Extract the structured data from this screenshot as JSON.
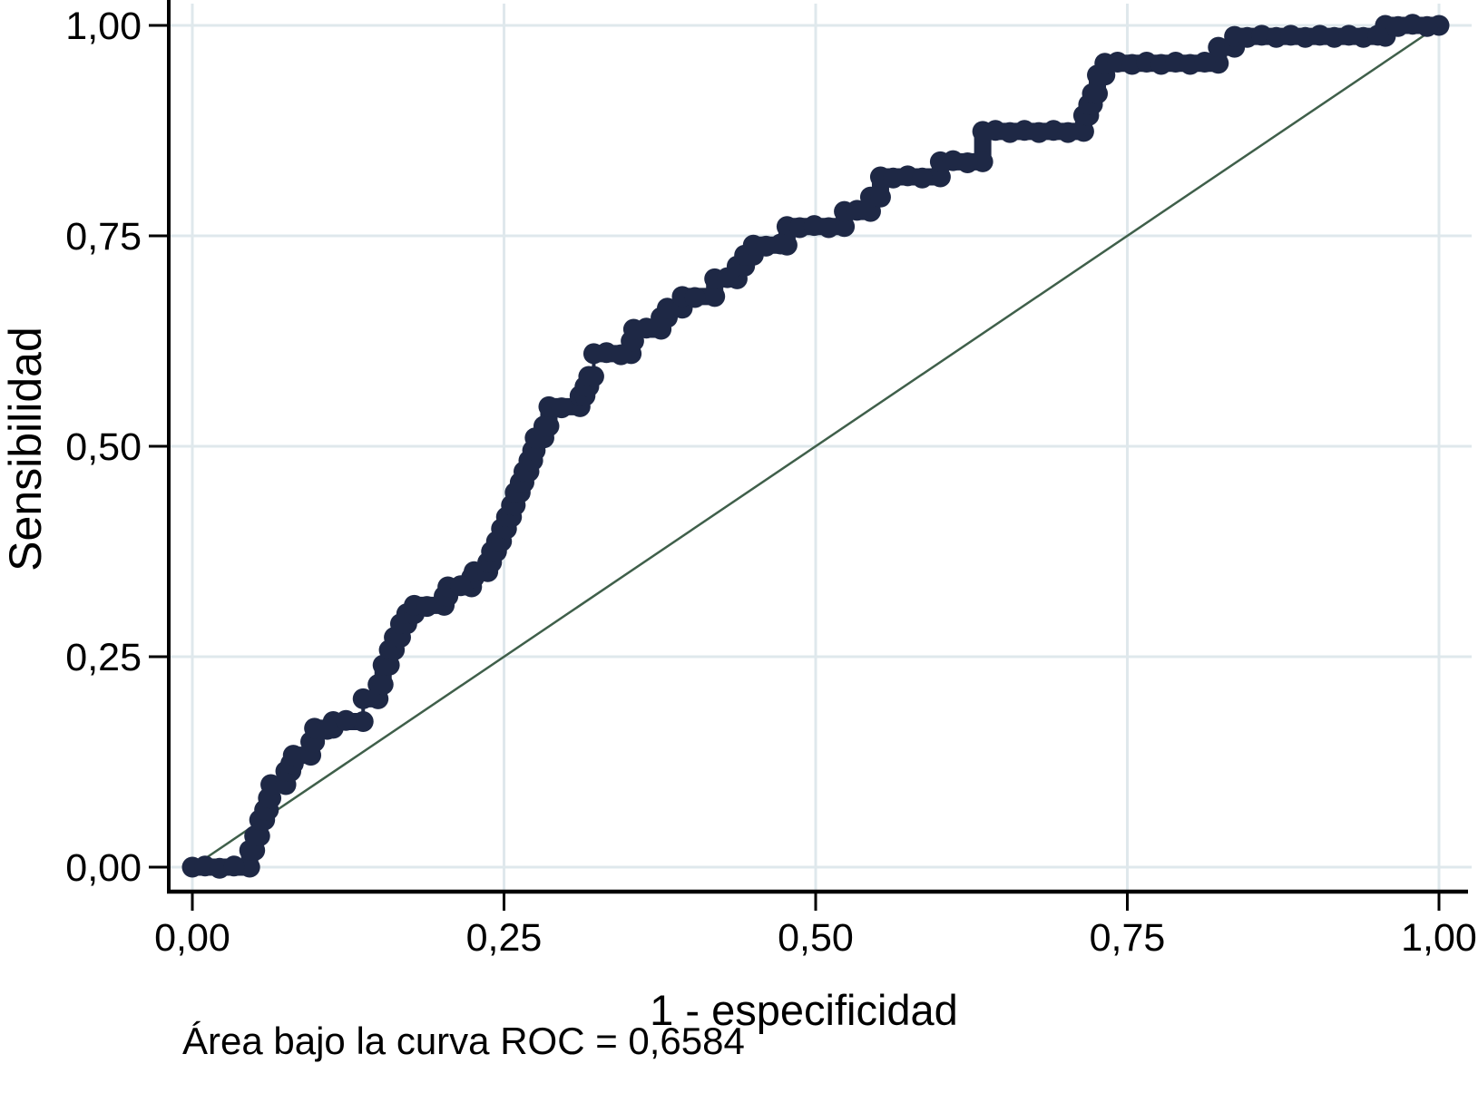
{
  "axes": {
    "y_label": "Sensibilidad",
    "x_label": "1 - especificidad"
  },
  "footer": {
    "auc_text": "Área bajo la curva ROC = 0,6584"
  },
  "colors": {
    "curve": "#1e2845",
    "reference_line": "#3f5f4a",
    "grid": "#dfe8ec",
    "axis": "#000000",
    "background": "#ffffff",
    "text": "#000000"
  },
  "chart_data": {
    "type": "line",
    "subtype": "roc-step-curve",
    "title": "",
    "xlabel": "1 - especificidad",
    "ylabel": "Sensibilidad",
    "xlim": [
      0,
      1
    ],
    "ylim": [
      0,
      1
    ],
    "grid": true,
    "legend_position": "none",
    "auc": 0.6584,
    "x_ticks": [
      {
        "value": 0.0,
        "label": "0,00"
      },
      {
        "value": 0.25,
        "label": "0,25"
      },
      {
        "value": 0.5,
        "label": "0,50"
      },
      {
        "value": 0.75,
        "label": "0,75"
      },
      {
        "value": 1.0,
        "label": "1,00"
      }
    ],
    "y_ticks": [
      {
        "value": 0.0,
        "label": "0,00"
      },
      {
        "value": 0.25,
        "label": "0,25"
      },
      {
        "value": 0.5,
        "label": "0,50"
      },
      {
        "value": 0.75,
        "label": "0,75"
      },
      {
        "value": 1.0,
        "label": "1,00"
      }
    ],
    "thin_vertical_steps_x": [
      0.137,
      0.322
    ],
    "series": [
      {
        "name": "Curva ROC",
        "style": "thick-step-with-markers",
        "color": "#1e2845",
        "points": [
          [
            0.0,
            0.0
          ],
          [
            0.046,
            0.0
          ],
          [
            0.046,
            0.02
          ],
          [
            0.05,
            0.02
          ],
          [
            0.05,
            0.037
          ],
          [
            0.054,
            0.037
          ],
          [
            0.054,
            0.056
          ],
          [
            0.058,
            0.056
          ],
          [
            0.058,
            0.068
          ],
          [
            0.061,
            0.068
          ],
          [
            0.061,
            0.082
          ],
          [
            0.063,
            0.082
          ],
          [
            0.063,
            0.098
          ],
          [
            0.075,
            0.098
          ],
          [
            0.075,
            0.114
          ],
          [
            0.079,
            0.114
          ],
          [
            0.079,
            0.123
          ],
          [
            0.081,
            0.123
          ],
          [
            0.081,
            0.133
          ],
          [
            0.095,
            0.133
          ],
          [
            0.095,
            0.149
          ],
          [
            0.098,
            0.149
          ],
          [
            0.098,
            0.165
          ],
          [
            0.113,
            0.165
          ],
          [
            0.113,
            0.173
          ],
          [
            0.137,
            0.173
          ],
          [
            0.137,
            0.2
          ],
          [
            0.149,
            0.2
          ],
          [
            0.149,
            0.217
          ],
          [
            0.153,
            0.217
          ],
          [
            0.153,
            0.24
          ],
          [
            0.158,
            0.24
          ],
          [
            0.158,
            0.258
          ],
          [
            0.162,
            0.258
          ],
          [
            0.162,
            0.273
          ],
          [
            0.167,
            0.273
          ],
          [
            0.167,
            0.289
          ],
          [
            0.172,
            0.289
          ],
          [
            0.172,
            0.301
          ],
          [
            0.178,
            0.301
          ],
          [
            0.178,
            0.311
          ],
          [
            0.202,
            0.311
          ],
          [
            0.202,
            0.322
          ],
          [
            0.205,
            0.322
          ],
          [
            0.205,
            0.333
          ],
          [
            0.224,
            0.333
          ],
          [
            0.224,
            0.344
          ],
          [
            0.226,
            0.344
          ],
          [
            0.226,
            0.351
          ],
          [
            0.237,
            0.351
          ],
          [
            0.237,
            0.362
          ],
          [
            0.24,
            0.362
          ],
          [
            0.24,
            0.375
          ],
          [
            0.244,
            0.375
          ],
          [
            0.244,
            0.387
          ],
          [
            0.248,
            0.387
          ],
          [
            0.248,
            0.402
          ],
          [
            0.252,
            0.402
          ],
          [
            0.252,
            0.416
          ],
          [
            0.256,
            0.416
          ],
          [
            0.256,
            0.43
          ],
          [
            0.259,
            0.43
          ],
          [
            0.259,
            0.445
          ],
          [
            0.263,
            0.445
          ],
          [
            0.263,
            0.457
          ],
          [
            0.266,
            0.457
          ],
          [
            0.266,
            0.47
          ],
          [
            0.27,
            0.47
          ],
          [
            0.27,
            0.483
          ],
          [
            0.273,
            0.483
          ],
          [
            0.273,
            0.495
          ],
          [
            0.275,
            0.495
          ],
          [
            0.275,
            0.51
          ],
          [
            0.282,
            0.51
          ],
          [
            0.282,
            0.524
          ],
          [
            0.286,
            0.524
          ],
          [
            0.286,
            0.547
          ],
          [
            0.311,
            0.547
          ],
          [
            0.311,
            0.56
          ],
          [
            0.315,
            0.56
          ],
          [
            0.315,
            0.571
          ],
          [
            0.318,
            0.571
          ],
          [
            0.318,
            0.583
          ],
          [
            0.322,
            0.583
          ],
          [
            0.322,
            0.61
          ],
          [
            0.352,
            0.61
          ],
          [
            0.352,
            0.625
          ],
          [
            0.354,
            0.625
          ],
          [
            0.354,
            0.639
          ],
          [
            0.376,
            0.639
          ],
          [
            0.376,
            0.653
          ],
          [
            0.381,
            0.653
          ],
          [
            0.381,
            0.664
          ],
          [
            0.393,
            0.664
          ],
          [
            0.393,
            0.678
          ],
          [
            0.419,
            0.678
          ],
          [
            0.419,
            0.699
          ],
          [
            0.437,
            0.699
          ],
          [
            0.437,
            0.714
          ],
          [
            0.443,
            0.714
          ],
          [
            0.443,
            0.727
          ],
          [
            0.45,
            0.727
          ],
          [
            0.45,
            0.739
          ],
          [
            0.477,
            0.739
          ],
          [
            0.477,
            0.761
          ],
          [
            0.523,
            0.761
          ],
          [
            0.523,
            0.779
          ],
          [
            0.544,
            0.779
          ],
          [
            0.544,
            0.796
          ],
          [
            0.552,
            0.796
          ],
          [
            0.552,
            0.82
          ],
          [
            0.6,
            0.82
          ],
          [
            0.6,
            0.838
          ],
          [
            0.634,
            0.838
          ],
          [
            0.634,
            0.874
          ],
          [
            0.715,
            0.874
          ],
          [
            0.715,
            0.893
          ],
          [
            0.719,
            0.893
          ],
          [
            0.719,
            0.906
          ],
          [
            0.722,
            0.906
          ],
          [
            0.722,
            0.919
          ],
          [
            0.726,
            0.919
          ],
          [
            0.726,
            0.941
          ],
          [
            0.732,
            0.941
          ],
          [
            0.732,
            0.955
          ],
          [
            0.823,
            0.955
          ],
          [
            0.823,
            0.974
          ],
          [
            0.836,
            0.974
          ],
          [
            0.836,
            0.987
          ],
          [
            0.957,
            0.987
          ],
          [
            0.957,
            1.0
          ],
          [
            1.0,
            1.0
          ]
        ]
      },
      {
        "name": "Línea de referencia",
        "style": "thin-line",
        "color": "#3f5f4a",
        "points": [
          [
            0,
            0
          ],
          [
            1,
            1
          ]
        ]
      }
    ]
  }
}
